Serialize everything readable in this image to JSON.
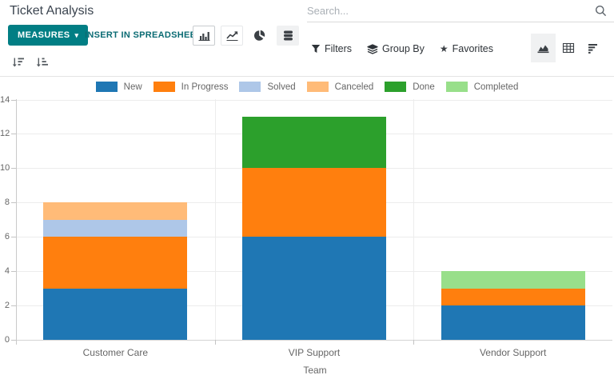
{
  "header": {
    "title": "Ticket Analysis"
  },
  "search": {
    "placeholder": "Search...",
    "icon": "search-icon"
  },
  "toolbar": {
    "measures": {
      "label": "MEASURES",
      "caret": "▾"
    },
    "insert_spreadsheet": {
      "label": "INSERT IN SPREADSHEET"
    },
    "chart_type_buttons": [
      {
        "name": "bar-chart-icon",
        "active": true
      },
      {
        "name": "line-chart-icon",
        "active": false
      },
      {
        "name": "pie-chart-icon",
        "active": false
      },
      {
        "name": "stacked-icon",
        "active": true
      }
    ],
    "sort_buttons": [
      {
        "name": "sort-descending-icon"
      },
      {
        "name": "sort-ascending-icon"
      }
    ],
    "search_menus": [
      {
        "label": "Filters",
        "icon": "filter-icon"
      },
      {
        "label": "Group By",
        "icon": "layers-icon"
      },
      {
        "label": "Favorites",
        "icon": "star-icon"
      }
    ],
    "view_switcher": [
      {
        "name": "graph-view-icon",
        "active": true
      },
      {
        "name": "pivot-view-icon",
        "active": false
      },
      {
        "name": "list-view-icon",
        "active": false
      }
    ]
  },
  "colors": {
    "accent": "#017e84",
    "grid": "#ececec",
    "tick_text": "#666666"
  },
  "chart_data": {
    "type": "bar",
    "stacked": true,
    "title": "",
    "categories": [
      "Customer Care",
      "VIP Support",
      "Vendor Support"
    ],
    "series": [
      {
        "name": "New",
        "color": "#1f77b4",
        "values": [
          3,
          6,
          2
        ]
      },
      {
        "name": "In Progress",
        "color": "#ff7f0e",
        "values": [
          3,
          4,
          1
        ]
      },
      {
        "name": "Solved",
        "color": "#aec7e8",
        "values": [
          1,
          0,
          0
        ]
      },
      {
        "name": "Canceled",
        "color": "#ffbb78",
        "values": [
          1,
          0,
          0
        ]
      },
      {
        "name": "Done",
        "color": "#2ca02c",
        "values": [
          0,
          3,
          0
        ]
      },
      {
        "name": "Completed",
        "color": "#98df8a",
        "values": [
          0,
          0,
          1
        ]
      }
    ],
    "totals": [
      8,
      13,
      4
    ],
    "xlabel": "Team",
    "ylabel": "",
    "ylim": [
      0,
      14
    ],
    "yticks": [
      0,
      2,
      4,
      6,
      8,
      10,
      12,
      14
    ],
    "legend_position": "top",
    "grid": true
  }
}
